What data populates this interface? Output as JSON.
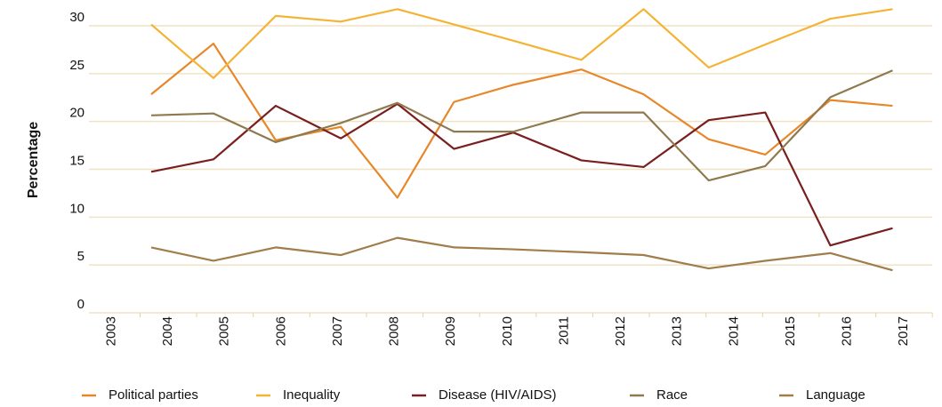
{
  "chart_data": {
    "type": "line",
    "y_label": "Percentage",
    "x": [
      2003.7,
      2004.8,
      2005.9,
      2007.05,
      2008.05,
      2009.05,
      2010.1,
      2011.3,
      2012.4,
      2013.55,
      2014.55,
      2015.7,
      2016.8
    ],
    "xlim": [
      2002.6,
      2017.5
    ],
    "xticks": [
      2003,
      2004,
      2005,
      2006,
      2007,
      2008,
      2009,
      2010,
      2011,
      2012,
      2013,
      2014,
      2015,
      2016,
      2017
    ],
    "ylim": [
      0,
      30
    ],
    "yticks": [
      0,
      5,
      10,
      15,
      20,
      25,
      30
    ],
    "grid": true,
    "legend": "bottom",
    "series": [
      {
        "name": "Political parties",
        "color": "#e8872a",
        "values": [
          22,
          27.3,
          17.2,
          18.6,
          11.2,
          21.2,
          23,
          24.6,
          22,
          17.3,
          15.7,
          21.4,
          20.8
        ]
      },
      {
        "name": "Inequality",
        "color": "#f5b335",
        "values": [
          29.3,
          23.7,
          30.2,
          29.6,
          30.9,
          29.3,
          27.6,
          25.6,
          30.9,
          24.8,
          27.2,
          29.9,
          30.9
        ]
      },
      {
        "name": "Disease (HIV/AIDS)",
        "color": "#7a1f1f",
        "values": [
          13.9,
          15.2,
          20.8,
          17.4,
          21,
          16.3,
          18,
          15.1,
          14.4,
          19.3,
          20.1,
          6.2,
          8
        ]
      },
      {
        "name": "Race",
        "color": "#8f7a50",
        "values": [
          19.8,
          20,
          17,
          19,
          21.1,
          18.1,
          18.1,
          20.1,
          20.1,
          13,
          14.5,
          21.7,
          24.5
        ]
      },
      {
        "name": "Language",
        "color": "#a07d4a",
        "values": [
          6,
          4.6,
          6,
          5.2,
          7,
          6,
          5.8,
          5.5,
          5.2,
          3.8,
          4.6,
          5.4,
          3.6
        ]
      }
    ]
  }
}
